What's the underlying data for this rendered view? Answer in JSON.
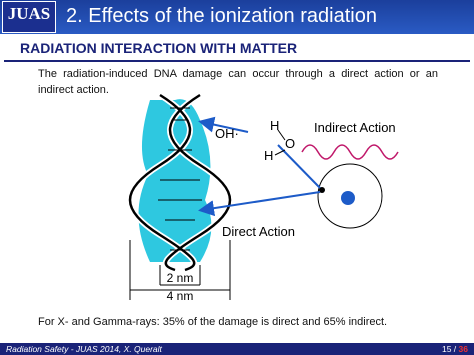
{
  "header": {
    "logo": "JUAS",
    "title": "2. Effects of the ionization radiation"
  },
  "section_title": "RADIATION INTERACTION WITH MATTER",
  "intro": "The radiation-induced DNA damage can occur through a direct action or an indirect action.",
  "diagram": {
    "labels": {
      "oh": "OH·",
      "h_top": "H",
      "o": "O",
      "h_bottom": "H",
      "indirect": "Indirect Action",
      "direct": "Direct Action",
      "inner_width": "2 nm",
      "outer_width": "4 nm"
    }
  },
  "note": "For X- and Gamma-rays: 35% of the damage is direct and 65% indirect.",
  "footer": {
    "credit": "Radiation Safety - JUAS 2014, X. Queralt",
    "page_current": "15 /",
    "page_total": "36"
  }
}
